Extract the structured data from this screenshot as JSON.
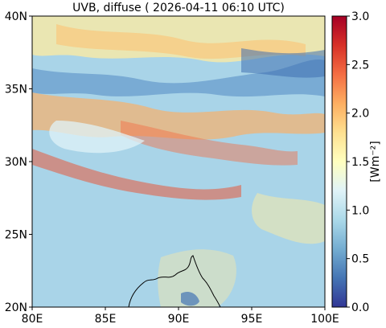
{
  "title": "UVB, diffuse ( 2026-04-11 06:10 UTC)",
  "map": {
    "lon_range": [
      80,
      100
    ],
    "lat_range": [
      20,
      40
    ],
    "x_ticks": [
      "80E",
      "85E",
      "90E",
      "95E",
      "100E"
    ],
    "y_ticks": [
      "40N",
      "35N",
      "30N",
      "25N",
      "20N"
    ],
    "x_tick_values": [
      80,
      85,
      90,
      95,
      100
    ],
    "y_tick_values": [
      40,
      35,
      30,
      25,
      20
    ]
  },
  "colorbar": {
    "label": "[Wm⁻²]",
    "range": [
      0.0,
      3.0
    ],
    "tick_labels": [
      "3.0",
      "2.5",
      "2.0",
      "1.5",
      "1.0",
      "0.5",
      "0.0"
    ],
    "tick_values": [
      3.0,
      2.5,
      2.0,
      1.5,
      1.0,
      0.5,
      0.0
    ],
    "colormap_stops": [
      "#313695",
      "#4575b4",
      "#74add1",
      "#abd9e9",
      "#e0f3f8",
      "#ffffbf",
      "#fee090",
      "#fdae61",
      "#f46d43",
      "#d73027",
      "#a50026"
    ]
  },
  "colors": {
    "background_field": "#a9d4e8",
    "coastline": "#000000"
  }
}
